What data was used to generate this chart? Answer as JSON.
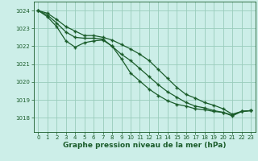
{
  "title": "Graphe pression niveau de la mer (hPa)",
  "bg_color": "#cceee8",
  "grid_color": "#99ccbb",
  "line_color": "#1a5c2a",
  "xlim": [
    -0.5,
    23.5
  ],
  "ylim": [
    1017.2,
    1024.5
  ],
  "yticks": [
    1018,
    1019,
    1020,
    1021,
    1022,
    1023,
    1024
  ],
  "xticks": [
    0,
    1,
    2,
    3,
    4,
    5,
    6,
    7,
    8,
    9,
    10,
    11,
    12,
    13,
    14,
    15,
    16,
    17,
    18,
    19,
    20,
    21,
    22,
    23
  ],
  "series": [
    [
      1024.0,
      1023.85,
      1023.5,
      1023.1,
      1022.85,
      1022.6,
      1022.6,
      1022.5,
      1022.35,
      1022.1,
      1021.85,
      1021.55,
      1021.2,
      1020.7,
      1020.2,
      1019.7,
      1019.3,
      1019.1,
      1018.85,
      1018.7,
      1018.5,
      1018.2,
      1018.35,
      1018.4
    ],
    [
      1024.0,
      1023.75,
      1023.3,
      1022.8,
      1022.5,
      1022.45,
      1022.45,
      1022.4,
      1022.0,
      1021.55,
      1021.2,
      1020.75,
      1020.3,
      1019.85,
      1019.45,
      1019.15,
      1018.85,
      1018.65,
      1018.55,
      1018.4,
      1018.3,
      1018.15,
      1018.35,
      1018.4
    ],
    [
      1024.0,
      1023.65,
      1023.1,
      1022.3,
      1021.95,
      1022.2,
      1022.3,
      1022.35,
      1022.0,
      1021.3,
      1020.5,
      1020.05,
      1019.6,
      1019.25,
      1018.95,
      1018.75,
      1018.65,
      1018.5,
      1018.45,
      1018.35,
      1018.3,
      1018.1,
      1018.35,
      1018.4
    ]
  ],
  "marker": "+",
  "markersize": 3.5,
  "markeredgewidth": 1.0,
  "linewidth": 0.9,
  "title_fontsize": 6.5,
  "tick_fontsize": 5.0
}
